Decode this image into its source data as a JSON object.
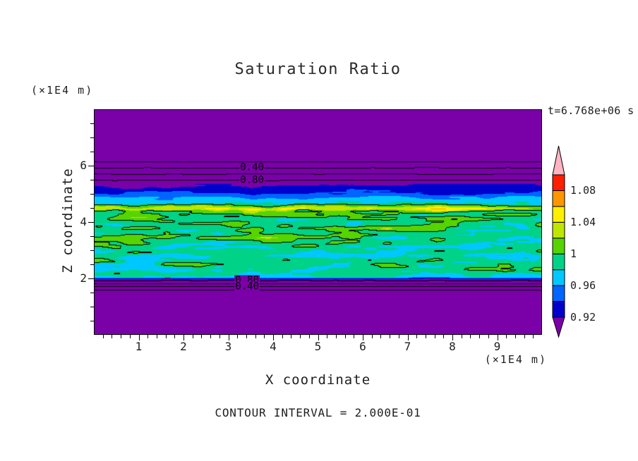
{
  "title": "Saturation Ratio",
  "footer": "CONTOUR INTERVAL = 2.000E-01",
  "chart_data": {
    "type": "heatmap",
    "subtype": "filled-contour",
    "title": "Saturation Ratio",
    "xlabel": "X coordinate",
    "ylabel": "Z coordinate",
    "x_unit": "(×1E4 m)",
    "z_unit": "(×1E4 m)",
    "time": "t=6.768e+06 s",
    "x_range": [
      0,
      10
    ],
    "z_range": [
      0,
      8
    ],
    "x_ticks": [
      1,
      2,
      3,
      4,
      5,
      6,
      7,
      8,
      9
    ],
    "z_ticks": [
      2,
      4,
      6
    ],
    "x_minor_step": 0.2,
    "z_minor_step": 0.5,
    "contour_interval": 0.2,
    "contour_levels": [
      0.2,
      0.4,
      0.6,
      0.8,
      1.0
    ],
    "contour_labels": [
      {
        "text": "0.40",
        "x": 3.53,
        "z": 5.92
      },
      {
        "text": "0.80",
        "x": 3.53,
        "z": 5.48
      },
      {
        "text": "0.80",
        "x": 3.42,
        "z": 1.92
      },
      {
        "text": "0.40",
        "x": 3.42,
        "z": 1.7
      }
    ],
    "colorbar": {
      "min": 0.92,
      "max": 1.1,
      "cell_size": 0.02,
      "tick_labels": [
        "1.08",
        "1.04",
        "1",
        "0.96",
        "0.92"
      ],
      "tick_values": [
        1.08,
        1.04,
        1.0,
        0.96,
        0.92
      ],
      "cell_colors_bottom_to_top": [
        "#0000CD",
        "#0064FF",
        "#00C8FF",
        "#00D287",
        "#55D400",
        "#BEE600",
        "#FFF000",
        "#FF9600",
        "#FF1E00"
      ],
      "below_min_color": "#7A00A8",
      "above_max_color": "#FFB4C3"
    },
    "field_model": {
      "description": "Horizontally layered saturation-ratio field: uniform sub-saturated (purple) zones at top and bottom with straight 0.2-interval contour lines, a mottled near-saturated green band between z=2 and z=4.7, a thin super-saturated yellow streak near z=4.5, a cyan layer near z=4.8 and a dark-blue layer near z=5.2.",
      "base_profile": [
        [
          0,
          0.03
        ],
        [
          1.55,
          0.12
        ],
        [
          1.99,
          0.92
        ],
        [
          2.06,
          0.978
        ],
        [
          2.3,
          0.986
        ],
        [
          3.2,
          0.99
        ],
        [
          4.1,
          0.998
        ],
        [
          4.38,
          1.005
        ],
        [
          4.48,
          1.04
        ],
        [
          4.58,
          1.005
        ],
        [
          4.66,
          0.98
        ],
        [
          4.9,
          0.958
        ],
        [
          5.02,
          0.938
        ],
        [
          5.35,
          0.917
        ],
        [
          5.48,
          0.8
        ],
        [
          6.3,
          0.06
        ],
        [
          8,
          0.03
        ]
      ],
      "noise_amp_profile": [
        [
          0,
          0
        ],
        [
          1.4,
          0.001
        ],
        [
          1.7,
          0.003
        ],
        [
          1.95,
          0.006
        ],
        [
          2.05,
          0.015
        ],
        [
          2.3,
          0.022
        ],
        [
          4.3,
          0.022
        ],
        [
          4.48,
          0.028
        ],
        [
          4.66,
          0.018
        ],
        [
          4.95,
          0.012
        ],
        [
          5.35,
          0.012
        ],
        [
          5.55,
          0.005
        ],
        [
          6.1,
          0.0015
        ],
        [
          6.6,
          0
        ],
        [
          8,
          0
        ]
      ],
      "seed": 7
    }
  }
}
